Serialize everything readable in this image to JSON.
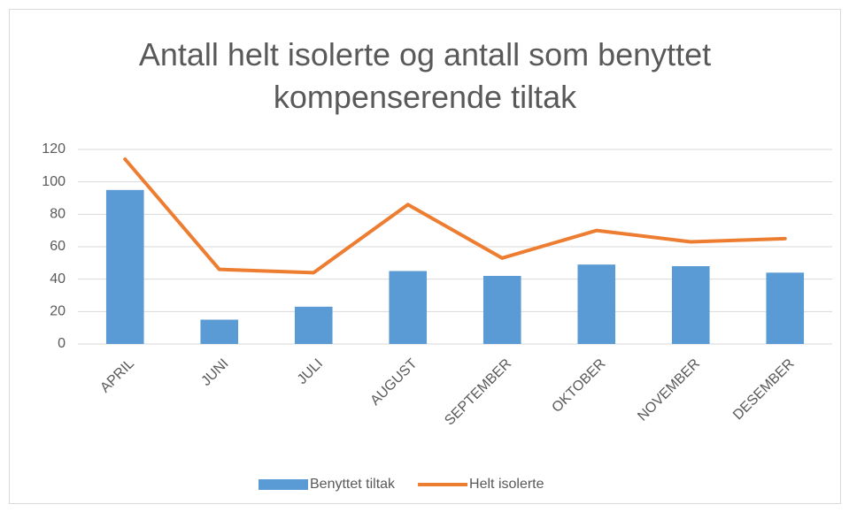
{
  "chart_data": {
    "type": "bar",
    "title": "Antall helt isolerte og antall som benyttet kompenserende tiltak",
    "categories": [
      "APRIL",
      "JUNI",
      "JULI",
      "AUGUST",
      "SEPTEMBER",
      "OKTOBER",
      "NOVEMBER",
      "DESEMBER"
    ],
    "series": [
      {
        "name": "Benyttet tiltak",
        "type": "bar",
        "color": "#5b9bd5",
        "values": [
          95,
          15,
          23,
          45,
          42,
          49,
          48,
          44
        ]
      },
      {
        "name": "Helt isolerte",
        "type": "line",
        "color": "#ed7d31",
        "values": [
          114,
          46,
          44,
          86,
          53,
          70,
          63,
          65
        ]
      }
    ],
    "ylim": [
      0,
      120
    ],
    "yticks": [
      0,
      20,
      40,
      60,
      80,
      100,
      120
    ],
    "grid": true,
    "legend": "bottom"
  }
}
